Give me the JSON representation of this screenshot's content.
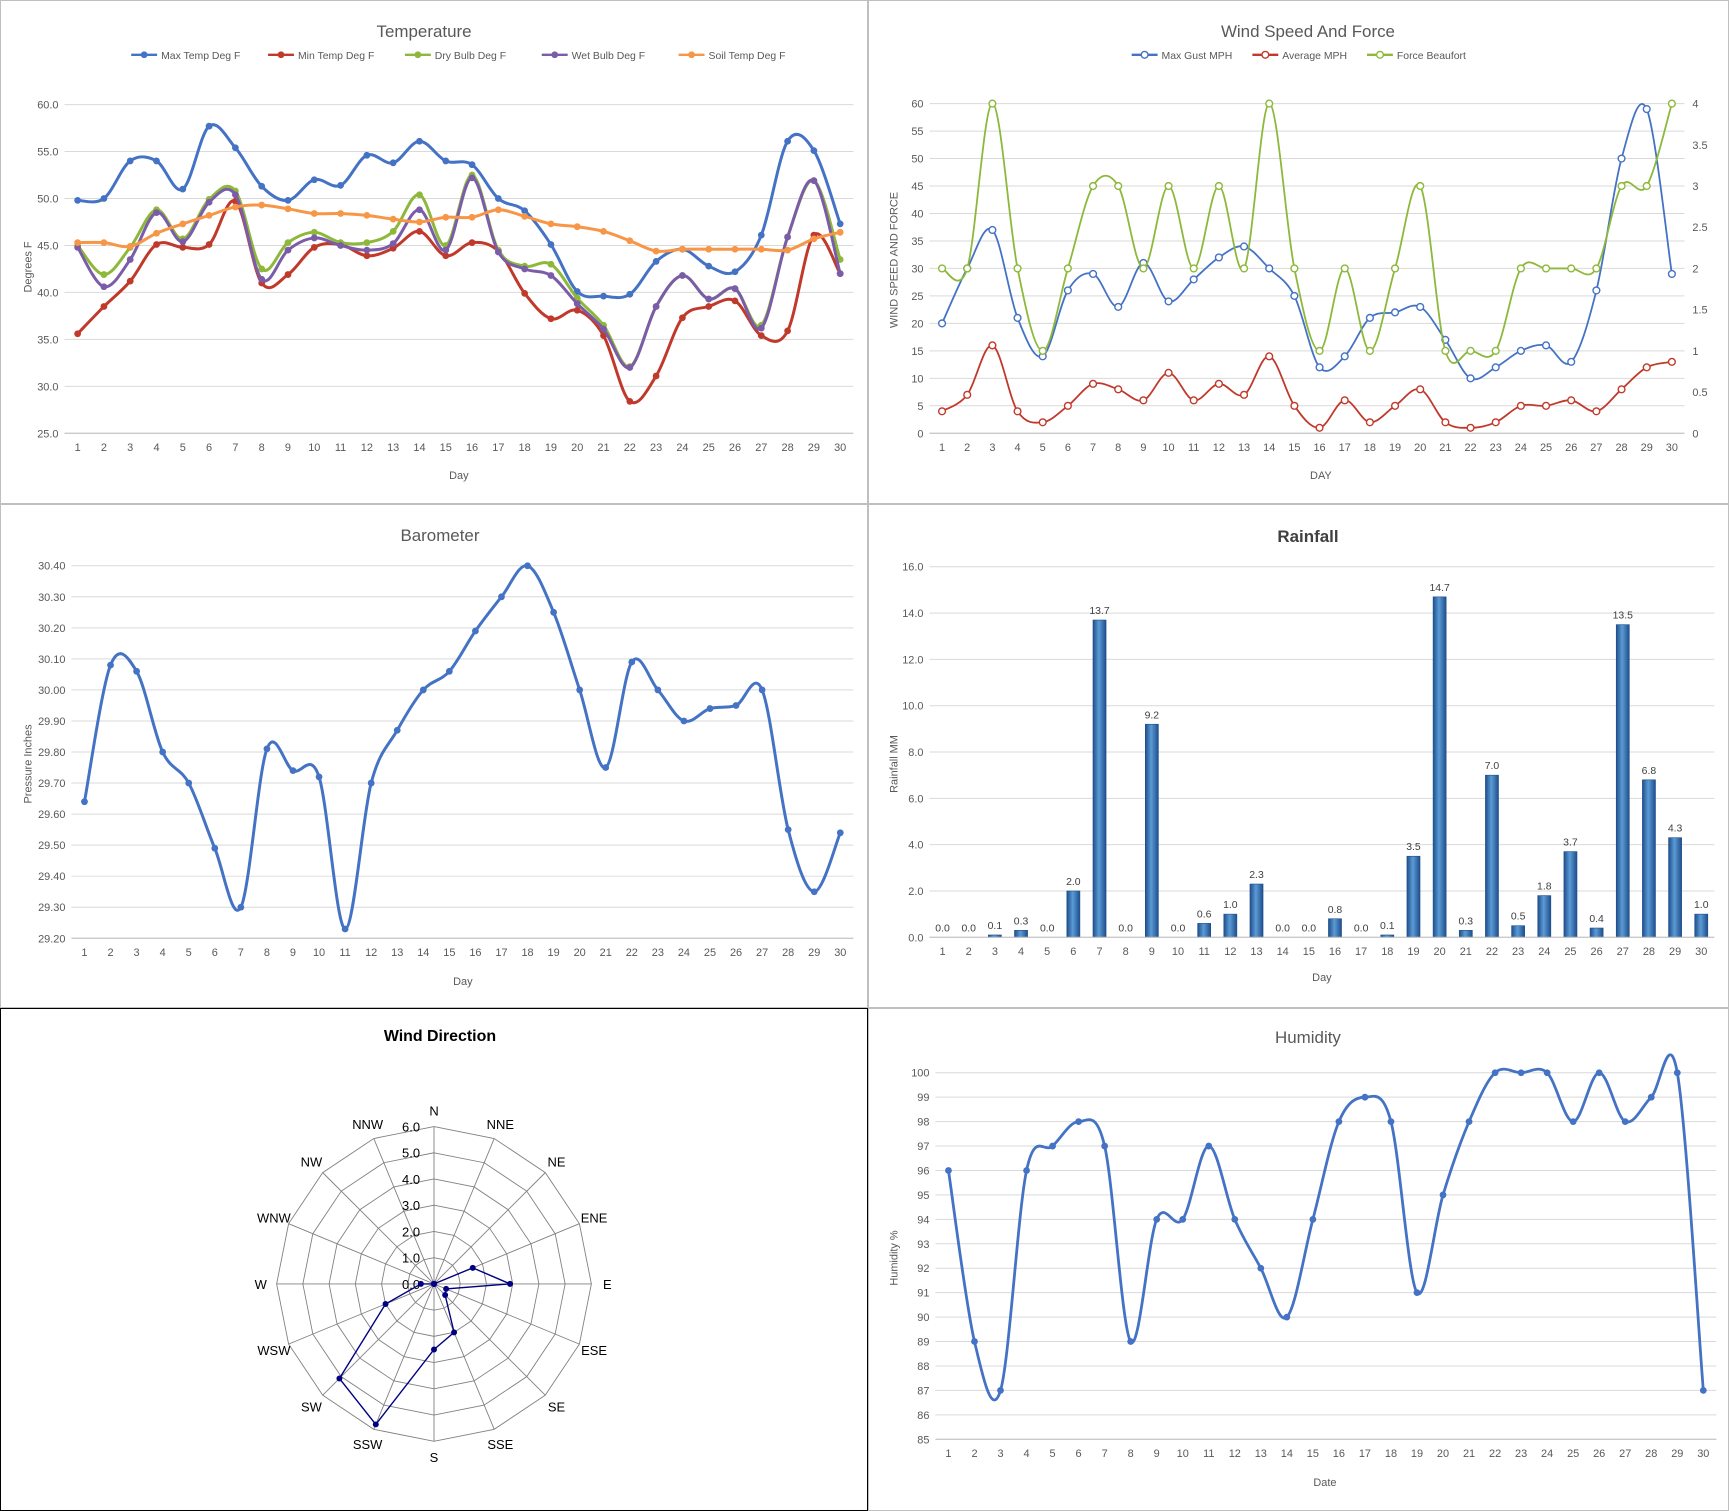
{
  "chart_data": [
    {
      "id": "temperature",
      "type": "line",
      "title": "Temperature",
      "xlabel": "Day",
      "ylabel": "Degrees F",
      "ylim": [
        25.0,
        60.0
      ],
      "yticks": [
        "25.0",
        "30.0",
        "35.0",
        "40.0",
        "45.0",
        "50.0",
        "55.0",
        "60.0"
      ],
      "x": [
        1,
        2,
        3,
        4,
        5,
        6,
        7,
        8,
        9,
        10,
        11,
        12,
        13,
        14,
        15,
        16,
        17,
        18,
        19,
        20,
        21,
        22,
        23,
        24,
        25,
        26,
        27,
        28,
        29,
        30
      ],
      "grid": true,
      "legend": "top",
      "series": [
        {
          "name": "Max Temp Deg F",
          "color": "#4472C4",
          "values": [
            49.8,
            50.0,
            54.0,
            54.0,
            51.0,
            57.7,
            55.4,
            51.3,
            49.8,
            52.0,
            51.4,
            54.6,
            53.8,
            56.1,
            54.0,
            53.6,
            50.0,
            48.7,
            45.1,
            40.1,
            39.6,
            39.8,
            43.3,
            44.6,
            42.8,
            42.2,
            46.1,
            56.1,
            55.1,
            47.3
          ]
        },
        {
          "name": "Min Temp Deg F",
          "color": "#C0392B",
          "values": [
            35.6,
            38.5,
            41.2,
            45.1,
            44.8,
            45.1,
            49.7,
            41.0,
            41.9,
            44.8,
            45.1,
            43.9,
            44.7,
            46.5,
            43.9,
            45.3,
            44.4,
            39.9,
            37.2,
            38.1,
            35.4,
            28.4,
            31.1,
            37.3,
            38.5,
            39.1,
            35.4,
            35.9,
            46.1,
            42.0
          ]
        },
        {
          "name": "Dry Bulb Deg F",
          "color": "#8DB83A",
          "values": [
            45.0,
            41.9,
            44.8,
            48.8,
            45.7,
            49.9,
            50.8,
            42.5,
            45.3,
            46.4,
            45.3,
            45.3,
            46.5,
            50.4,
            45.0,
            52.5,
            44.5,
            42.8,
            43.0,
            39.4,
            36.5,
            32.1,
            38.5,
            41.8,
            39.3,
            40.4,
            36.5,
            45.9,
            51.9,
            43.5
          ]
        },
        {
          "name": "Wet Bulb Deg F",
          "color": "#7B5CA8",
          "values": [
            44.8,
            40.6,
            43.5,
            48.5,
            45.4,
            49.6,
            50.4,
            41.4,
            44.5,
            45.8,
            45.0,
            44.5,
            45.2,
            48.8,
            44.5,
            52.2,
            44.3,
            42.5,
            41.8,
            38.8,
            36.1,
            32.0,
            38.5,
            41.8,
            39.3,
            40.4,
            36.2,
            45.9,
            51.9,
            42.0
          ]
        },
        {
          "name": "Soil Temp Deg F",
          "color": "#F79646",
          "values": [
            45.3,
            45.3,
            44.9,
            46.3,
            47.3,
            48.2,
            49.1,
            49.3,
            48.9,
            48.4,
            48.4,
            48.2,
            47.8,
            47.5,
            48.0,
            48.0,
            48.8,
            48.1,
            47.3,
            47.0,
            46.5,
            45.5,
            44.4,
            44.6,
            44.6,
            44.6,
            44.6,
            44.5,
            45.7,
            46.4
          ]
        }
      ]
    },
    {
      "id": "wind",
      "type": "line",
      "title": "Wind Speed And Force",
      "xlabel": "DAY",
      "ylabel": "WIND SPEED AND FORCE",
      "ylim": [
        0,
        60
      ],
      "y2lim": [
        0,
        4
      ],
      "yticks": [
        "0",
        "5",
        "10",
        "15",
        "20",
        "25",
        "30",
        "35",
        "40",
        "45",
        "50",
        "55",
        "60"
      ],
      "y2ticks": [
        "0",
        "0.5",
        "1",
        "1.5",
        "2",
        "2.5",
        "3",
        "3.5",
        "4"
      ],
      "x": [
        1,
        2,
        3,
        4,
        5,
        6,
        7,
        8,
        9,
        10,
        11,
        12,
        13,
        14,
        15,
        16,
        17,
        18,
        19,
        20,
        21,
        22,
        23,
        24,
        25,
        26,
        27,
        28,
        29,
        30
      ],
      "grid": true,
      "legend": "top",
      "series": [
        {
          "name": "Max Gust MPH",
          "color": "#4472C4",
          "axis": "left",
          "values": [
            20,
            30,
            37,
            21,
            14,
            26,
            29,
            23,
            31,
            24,
            28,
            32,
            34,
            30,
            25,
            12,
            14,
            21,
            22,
            23,
            17,
            10,
            12,
            15,
            16,
            13,
            26,
            50,
            59,
            29
          ]
        },
        {
          "name": "Average MPH",
          "color": "#C0392B",
          "axis": "left",
          "values": [
            4,
            7,
            16,
            4,
            2,
            5,
            9,
            8,
            6,
            11,
            6,
            9,
            7,
            14,
            5,
            1,
            6,
            2,
            5,
            8,
            2,
            1,
            2,
            5,
            5,
            6,
            4,
            8,
            12,
            13
          ]
        },
        {
          "name": "Force Beaufort",
          "color": "#8DB83A",
          "axis": "right",
          "values": [
            2,
            2,
            4,
            2,
            1,
            2,
            3,
            3,
            2,
            3,
            2,
            3,
            2,
            4,
            2,
            1,
            2,
            1,
            2,
            3,
            1,
            1,
            1,
            2,
            2,
            2,
            2,
            3,
            3,
            4
          ]
        }
      ]
    },
    {
      "id": "barometer",
      "type": "line",
      "title": "Barometer",
      "xlabel": "Day",
      "ylabel": "Pressure Inches",
      "ylim": [
        29.2,
        30.4
      ],
      "yticks": [
        "29.20",
        "29.30",
        "29.40",
        "29.50",
        "29.60",
        "29.70",
        "29.80",
        "29.90",
        "30.00",
        "30.10",
        "30.20",
        "30.30",
        "30.40"
      ],
      "x": [
        1,
        2,
        3,
        4,
        5,
        6,
        7,
        8,
        9,
        10,
        11,
        12,
        13,
        14,
        15,
        16,
        17,
        18,
        19,
        20,
        21,
        22,
        23,
        24,
        25,
        26,
        27,
        28,
        29,
        30
      ],
      "grid": true,
      "series": [
        {
          "name": "",
          "color": "#4472C4",
          "values": [
            29.64,
            30.08,
            30.06,
            29.8,
            29.7,
            29.49,
            29.3,
            29.81,
            29.74,
            29.72,
            29.23,
            29.7,
            29.87,
            30.0,
            30.06,
            30.19,
            30.3,
            30.4,
            30.25,
            30.0,
            29.75,
            30.09,
            30.0,
            29.9,
            29.94,
            29.95,
            30.0,
            29.55,
            29.35,
            29.54
          ]
        }
      ]
    },
    {
      "id": "rainfall",
      "type": "bar",
      "title": "Rainfall",
      "xlabel": "Day",
      "ylabel": "Rainfall MM",
      "ylim": [
        0,
        16
      ],
      "yticks": [
        "0.0",
        "2.0",
        "4.0",
        "6.0",
        "8.0",
        "10.0",
        "12.0",
        "14.0",
        "16.0"
      ],
      "categories": [
        "1",
        "2",
        "3",
        "4",
        "5",
        "6",
        "7",
        "8",
        "9",
        "10",
        "11",
        "12",
        "13",
        "14",
        "15",
        "16",
        "17",
        "18",
        "19",
        "20",
        "21",
        "22",
        "23",
        "24",
        "25",
        "26",
        "27",
        "28",
        "29",
        "30"
      ],
      "values": [
        0.0,
        0.0,
        0.1,
        0.3,
        0.0,
        2.0,
        13.7,
        0.0,
        9.2,
        0.0,
        0.6,
        1.0,
        2.3,
        0.0,
        0.0,
        0.8,
        0.0,
        0.1,
        3.5,
        14.7,
        0.3,
        7.0,
        0.5,
        1.8,
        3.7,
        0.4,
        13.5,
        6.8,
        4.3,
        1.0
      ],
      "labels": [
        "0.0",
        "0.0",
        "0.1",
        "0.3",
        "0.0",
        "2.0",
        "13.7",
        "0.0",
        "9.2",
        "0.0",
        "0.6",
        "1.0",
        "2.3",
        "0.0",
        "0.0",
        "0.8",
        "0.0",
        "0.1",
        "3.5",
        "14.7",
        "0.3",
        "7.0",
        "0.5",
        "1.8",
        "3.7",
        "0.4",
        "13.5",
        "6.8",
        "4.3",
        "1.0"
      ],
      "color": "#2E75B6",
      "grid": true
    },
    {
      "id": "wind_direction",
      "type": "radar",
      "title": "Wind Direction",
      "directions": [
        "N",
        "NNE",
        "NE",
        "ENE",
        "E",
        "ESE",
        "SE",
        "SSE",
        "S",
        "SSW",
        "SW",
        "WSW",
        "W",
        "WNW",
        "NW",
        "NNW"
      ],
      "values": [
        0,
        0,
        0,
        1.6,
        2.9,
        0.5,
        0.6,
        2.0,
        2.5,
        5.8,
        5.1,
        2.0,
        0.5,
        0,
        0,
        0
      ],
      "ylim": [
        0,
        6
      ],
      "rticks": [
        "0.0",
        "1.0",
        "2.0",
        "3.0",
        "4.0",
        "5.0",
        "6.0"
      ],
      "color": "#000080"
    },
    {
      "id": "humidity",
      "type": "line",
      "title": "Humidity",
      "xlabel": "Date",
      "ylabel": "Humidity %",
      "ylim": [
        85,
        100
      ],
      "yticks": [
        "85",
        "86",
        "87",
        "88",
        "89",
        "90",
        "91",
        "92",
        "93",
        "94",
        "95",
        "96",
        "97",
        "98",
        "99",
        "100"
      ],
      "x": [
        1,
        2,
        3,
        4,
        5,
        6,
        7,
        8,
        9,
        10,
        11,
        12,
        13,
        14,
        15,
        16,
        17,
        18,
        19,
        20,
        21,
        22,
        23,
        24,
        25,
        26,
        27,
        28,
        29,
        30
      ],
      "grid": true,
      "series": [
        {
          "name": "",
          "color": "#4472C4",
          "values": [
            96,
            89,
            87,
            96,
            97,
            98,
            97,
            89,
            94,
            94,
            97,
            94,
            92,
            90,
            94,
            98,
            99,
            98,
            91,
            95,
            98,
            100,
            100,
            100,
            98,
            100,
            98,
            99,
            100,
            87
          ]
        }
      ]
    }
  ]
}
